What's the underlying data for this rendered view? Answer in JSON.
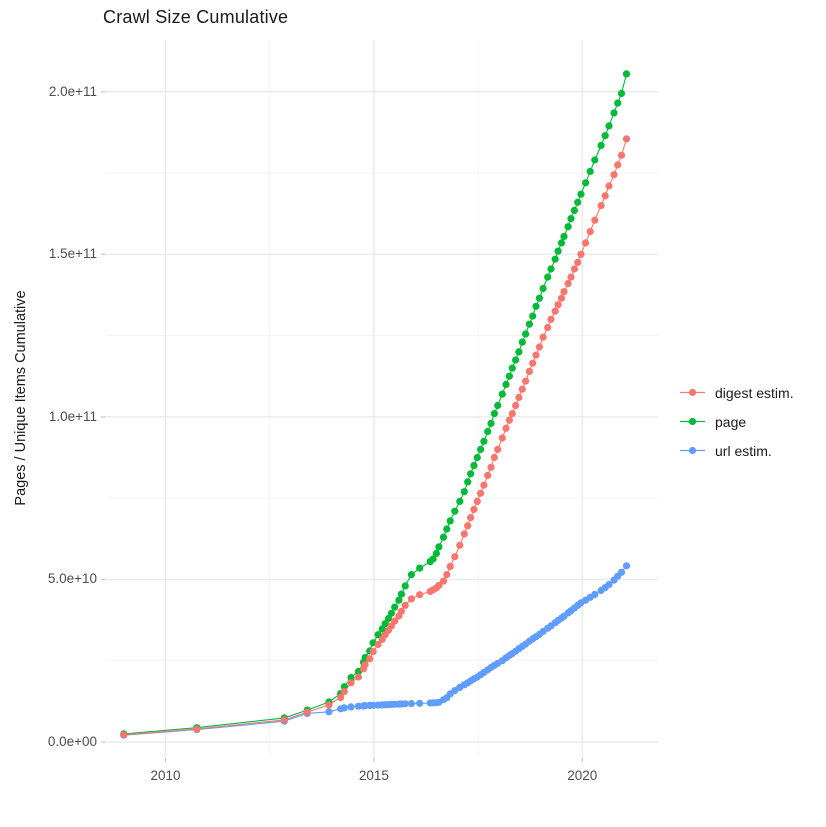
{
  "title": "Crawl Size Cumulative",
  "axes": {
    "y_label": "Pages / Unique Items Cumulative",
    "y_tick_labels": [
      "0.0e+00",
      "5.0e+10",
      "1.0e+11",
      "1.5e+11",
      "2.0e+11"
    ],
    "x_tick_labels": [
      "2010",
      "2015",
      "2020"
    ]
  },
  "legend": {
    "position": "right",
    "items": [
      {
        "label": "digest estim.",
        "color": "#F8766D"
      },
      {
        "label": "page",
        "color": "#00BA38"
      },
      {
        "label": "url estim.",
        "color": "#619CFF"
      }
    ]
  },
  "chart_data": {
    "type": "scatter",
    "title": "Crawl Size Cumulative",
    "xlabel": "",
    "ylabel": "Pages / Unique Items Cumulative",
    "grid": true,
    "legend_position": "right",
    "x_major_ticks": [
      2010,
      2015,
      2020
    ],
    "x_minor_ticks": [
      2012.5,
      2017.5
    ],
    "y_major_ticks": [
      0,
      50000000000.0,
      100000000000.0,
      150000000000.0,
      200000000000.0
    ],
    "y_minor_ticks": [
      25000000000.0,
      75000000000.0,
      125000000000.0,
      175000000000.0
    ],
    "xlim": [
      2008.58,
      2021.82
    ],
    "ylim": [
      -4600000000.0,
      216000000000.0
    ],
    "x": [
      2009.0,
      2010.75,
      2012.85,
      2013.4,
      2013.92,
      2014.2,
      2014.29,
      2014.45,
      2014.63,
      2014.75,
      2014.79,
      2014.9,
      2014.98,
      2015.1,
      2015.2,
      2015.27,
      2015.35,
      2015.42,
      2015.5,
      2015.6,
      2015.66,
      2015.75,
      2015.9,
      2016.1,
      2016.35,
      2016.42,
      2016.5,
      2016.56,
      2016.67,
      2016.75,
      2016.83,
      2016.94,
      2017.06,
      2017.17,
      2017.25,
      2017.32,
      2017.4,
      2017.48,
      2017.56,
      2017.64,
      2017.73,
      2017.81,
      2017.89,
      2017.97,
      2018.08,
      2018.17,
      2018.25,
      2018.32,
      2018.4,
      2018.48,
      2018.56,
      2018.64,
      2018.73,
      2018.81,
      2018.89,
      2018.97,
      2019.06,
      2019.17,
      2019.25,
      2019.35,
      2019.42,
      2019.5,
      2019.56,
      2019.66,
      2019.73,
      2019.81,
      2019.89,
      2019.97,
      2020.08,
      2020.19,
      2020.3,
      2020.45,
      2020.55,
      2020.64,
      2020.76,
      2020.85,
      2020.94,
      2021.06
    ],
    "series": [
      {
        "name": "page",
        "color": "#00BA38",
        "values": [
          2500000000.0,
          4400000000.0,
          7400000000.0,
          9800000000.0,
          12300000000.0,
          14900000000.0,
          17000000000.0,
          19800000000.0,
          21700000000.0,
          24500000000.0,
          26000000000.0,
          28000000000.0,
          30500000000.0,
          33000000000.0,
          34800000000.0,
          36400000000.0,
          38000000000.0,
          39600000000.0,
          41500000000.0,
          43600000000.0,
          45500000000.0,
          48000000000.0,
          51500000000.0,
          53500000000.0,
          55500000000.0,
          56300000000.0,
          58000000000.0,
          60000000000.0,
          63000000000.0,
          65500000000.0,
          68000000000.0,
          71000000000.0,
          74000000000.0,
          77000000000.0,
          80000000000.0,
          82500000000.0,
          85000000000.0,
          87500000000.0,
          90000000000.0,
          92500000000.0,
          95500000000.0,
          98000000000.0,
          101000000000.0,
          103500000000.0,
          107000000000.0,
          110000000000.0,
          112500000000.0,
          115000000000.0,
          117500000000.0,
          120000000000.0,
          123000000000.0,
          125500000000.0,
          128500000000.0,
          131000000000.0,
          134000000000.0,
          136500000000.0,
          139500000000.0,
          143000000000.0,
          145500000000.0,
          148500000000.0,
          151000000000.0,
          153500000000.0,
          155500000000.0,
          158500000000.0,
          161000000000.0,
          163500000000.0,
          166000000000.0,
          168500000000.0,
          172000000000.0,
          175500000000.0,
          179000000000.0,
          183500000000.0,
          186500000000.0,
          189500000000.0,
          193500000000.0,
          196500000000.0,
          199500000000.0,
          205500000000.0
        ]
      },
      {
        "name": "url estim.",
        "color": "#619CFF",
        "values": [
          2100000000.0,
          3800000000.0,
          6400000000.0,
          8800000000.0,
          9300000000.0,
          10200000000.0,
          10500000000.0,
          10800000000.0,
          11000000000.0,
          11100000000.0,
          11200000000.0,
          11250000000.0,
          11300000000.0,
          11350000000.0,
          11400000000.0,
          11450000000.0,
          11500000000.0,
          11550000000.0,
          11600000000.0,
          11650000000.0,
          11700000000.0,
          11750000000.0,
          11800000000.0,
          11900000000.0,
          12000000000.0,
          12050000000.0,
          12100000000.0,
          12200000000.0,
          13000000000.0,
          13600000000.0,
          14800000000.0,
          15800000000.0,
          16800000000.0,
          17600000000.0,
          18200000000.0,
          18800000000.0,
          19400000000.0,
          20000000000.0,
          20700000000.0,
          21400000000.0,
          22200000000.0,
          22900000000.0,
          23600000000.0,
          24200000000.0,
          25000000000.0,
          25900000000.0,
          26600000000.0,
          27200000000.0,
          27900000000.0,
          28700000000.0,
          29400000000.0,
          30100000000.0,
          31000000000.0,
          31700000000.0,
          32400000000.0,
          33100000000.0,
          34000000000.0,
          35000000000.0,
          35700000000.0,
          36700000000.0,
          37400000000.0,
          38100000000.0,
          38700000000.0,
          39700000000.0,
          40400000000.0,
          41200000000.0,
          42000000000.0,
          42800000000.0,
          43600000000.0,
          44500000000.0,
          45400000000.0,
          46600000000.0,
          47500000000.0,
          48400000000.0,
          49800000000.0,
          51000000000.0,
          52200000000.0,
          54200000000.0
        ]
      },
      {
        "name": "digest estim.",
        "color": "#F8766D",
        "values": [
          2200000000.0,
          4000000000.0,
          6800000000.0,
          9200000000.0,
          11400000000.0,
          13700000000.0,
          15500000000.0,
          18200000000.0,
          20000000000.0,
          22500000000.0,
          23800000000.0,
          25600000000.0,
          27800000000.0,
          30000000000.0,
          31600000000.0,
          33000000000.0,
          34400000000.0,
          35700000000.0,
          37200000000.0,
          38800000000.0,
          40200000000.0,
          42000000000.0,
          44000000000.0,
          45300000000.0,
          46300000000.0,
          46800000000.0,
          47400000000.0,
          48200000000.0,
          49500000000.0,
          51500000000.0,
          54000000000.0,
          57000000000.0,
          60500000000.0,
          64000000000.0,
          66500000000.0,
          69000000000.0,
          71500000000.0,
          74000000000.0,
          76500000000.0,
          79000000000.0,
          82000000000.0,
          84500000000.0,
          87500000000.0,
          90000000000.0,
          93500000000.0,
          96500000000.0,
          99000000000.0,
          101000000000.0,
          103500000000.0,
          106000000000.0,
          108500000000.0,
          111000000000.0,
          114000000000.0,
          116500000000.0,
          119000000000.0,
          121500000000.0,
          124500000000.0,
          127500000000.0,
          130000000000.0,
          132500000000.0,
          134500000000.0,
          136500000000.0,
          138500000000.0,
          141000000000.0,
          143000000000.0,
          145500000000.0,
          147500000000.0,
          150000000000.0,
          153500000000.0,
          157000000000.0,
          160500000000.0,
          165000000000.0,
          168000000000.0,
          171000000000.0,
          174500000000.0,
          177500000000.0,
          180500000000.0,
          185500000000.0
        ]
      }
    ]
  },
  "style": {
    "grid_major_color": "#EBEBEB",
    "grid_minor_color": "#F2F2F2",
    "tick_color": "#C8C8C8",
    "background": "#FFFFFF"
  }
}
